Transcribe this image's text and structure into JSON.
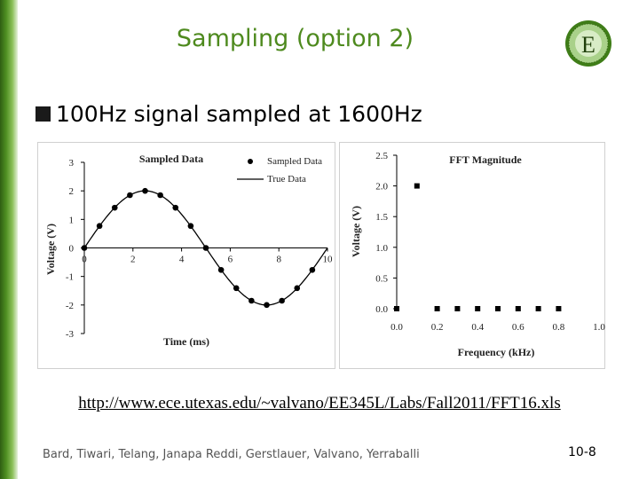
{
  "slide": {
    "title": "Sampling (option 2)",
    "bullet": "100Hz signal sampled at 1600Hz",
    "url": "http://www.ece.utexas.edu/~valvano/EE345L/Labs/Fall2011/FFT16.xls",
    "authors": "Bard, Tiwari, Telang, Janapa Reddi, Gerstlauer, Valvano, Yerraballi",
    "page_number": "10-8",
    "logo_letter": "E",
    "logo_icon": "logo-seal-icon",
    "accent_color": "#4e8a1e"
  },
  "chart_data": [
    {
      "type": "scatter",
      "title": "Sampled Data",
      "xlabel": "Time (ms)",
      "ylabel": "Voltage (V)",
      "xlim": [
        0,
        10
      ],
      "ylim": [
        -3,
        3
      ],
      "xticks": [
        "0",
        "2",
        "4",
        "6",
        "8",
        "10"
      ],
      "yticks": [
        "-3",
        "-2",
        "-1",
        "0",
        "1",
        "2",
        "3"
      ],
      "grid": false,
      "legend_position": "top-right",
      "series": [
        {
          "name": "Sampled Data",
          "kind": "points",
          "x": [
            0,
            0.625,
            1.25,
            1.875,
            2.5,
            3.125,
            3.75,
            4.375,
            5,
            5.625,
            6.25,
            6.875,
            7.5,
            8.125,
            8.75,
            9.375
          ],
          "y": [
            0,
            0.77,
            1.41,
            1.85,
            2,
            1.85,
            1.41,
            0.77,
            0,
            -0.77,
            -1.41,
            -1.85,
            -2,
            -1.85,
            -1.41,
            -0.77
          ]
        },
        {
          "name": "True Data",
          "kind": "line",
          "function": "2*sin(2*pi*x/10)",
          "x_range": [
            0,
            10
          ]
        }
      ]
    },
    {
      "type": "scatter",
      "title": "FFT Magnitude",
      "xlabel": "Frequency (kHz)",
      "ylabel": "Voltage (V)",
      "xlim": [
        0,
        1.0
      ],
      "ylim": [
        0,
        2.5
      ],
      "xticks": [
        "0.0",
        "0.2",
        "0.4",
        "0.6",
        "0.8",
        "1.0"
      ],
      "yticks": [
        "0.0",
        "0.5",
        "1.0",
        "1.5",
        "2.0",
        "2.5"
      ],
      "grid": false,
      "series": [
        {
          "kind": "points",
          "x": [
            0,
            0.1,
            0.2,
            0.3,
            0.4,
            0.5,
            0.6,
            0.7,
            0.8
          ],
          "y": [
            0,
            2.0,
            0,
            0,
            0,
            0,
            0,
            0,
            0
          ]
        }
      ]
    }
  ]
}
